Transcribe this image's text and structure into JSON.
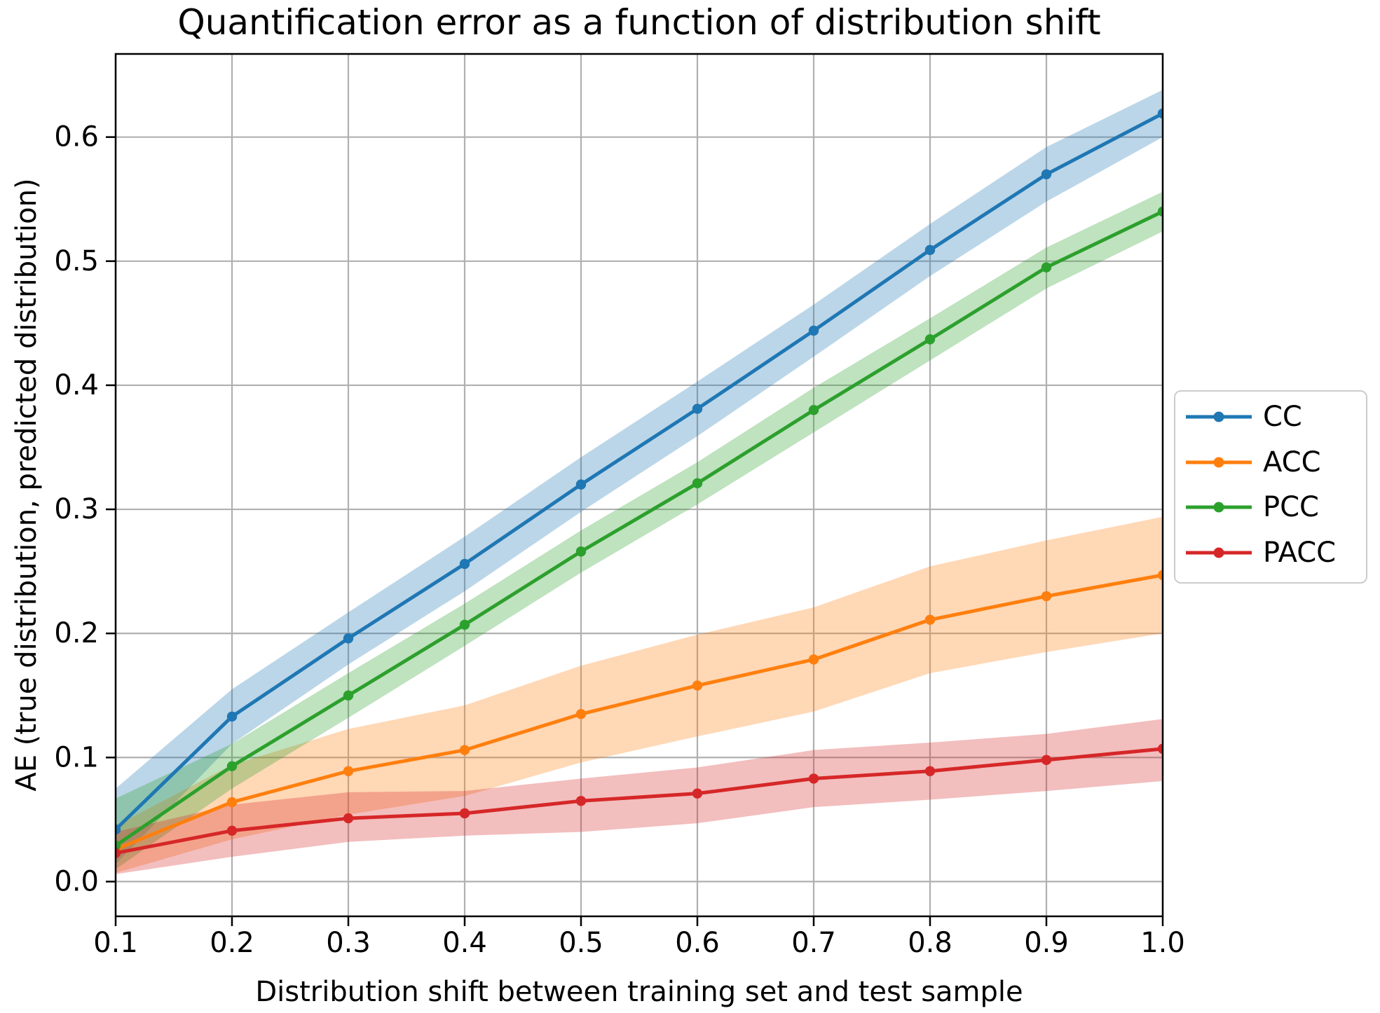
{
  "figure": {
    "background": "#ffffff"
  },
  "chart_data": {
    "type": "line",
    "title": "Quantification error as a function of distribution shift",
    "xlabel": "Distribution shift between training set and test sample",
    "ylabel": "AE (true distribution, predicted distribution)",
    "xlim": [
      0.1,
      1.0
    ],
    "ylim": [
      -0.028,
      0.667
    ],
    "grid": true,
    "grid_color": "#b0b0b0",
    "axis_color": "#000000",
    "legend_position": "right-outside",
    "legend_border_color": "#cccccc",
    "xticks": [
      "0.1",
      "0.2",
      "0.3",
      "0.4",
      "0.5",
      "0.6",
      "0.7",
      "0.8",
      "0.9",
      "1.0"
    ],
    "yticks": [
      "0.0",
      "0.1",
      "0.2",
      "0.3",
      "0.4",
      "0.5",
      "0.6"
    ],
    "x": [
      0.1,
      0.2,
      0.3,
      0.4,
      0.5,
      0.6,
      0.7,
      0.8,
      0.9,
      1.0
    ],
    "series": [
      {
        "name": "CC",
        "color": "#1f77b4",
        "band_alpha": 0.3,
        "values": [
          0.042,
          0.133,
          0.196,
          0.256,
          0.32,
          0.381,
          0.444,
          0.509,
          0.57,
          0.619
        ],
        "band_lower": [
          0.014,
          0.111,
          0.175,
          0.234,
          0.298,
          0.359,
          0.423,
          0.488,
          0.548,
          0.6
        ],
        "band_upper": [
          0.075,
          0.155,
          0.217,
          0.278,
          0.342,
          0.403,
          0.465,
          0.53,
          0.592,
          0.638
        ]
      },
      {
        "name": "ACC",
        "color": "#ff7f0e",
        "band_alpha": 0.3,
        "values": [
          0.026,
          0.064,
          0.089,
          0.106,
          0.135,
          0.158,
          0.179,
          0.211,
          0.23,
          0.247
        ],
        "band_lower": [
          0.007,
          0.034,
          0.054,
          0.069,
          0.096,
          0.117,
          0.137,
          0.168,
          0.185,
          0.2
        ],
        "band_upper": [
          0.045,
          0.094,
          0.123,
          0.142,
          0.174,
          0.199,
          0.221,
          0.254,
          0.275,
          0.294
        ]
      },
      {
        "name": "PCC",
        "color": "#2ca02c",
        "band_alpha": 0.3,
        "values": [
          0.029,
          0.093,
          0.15,
          0.207,
          0.266,
          0.321,
          0.38,
          0.437,
          0.495,
          0.54
        ],
        "band_lower": [
          0.01,
          0.075,
          0.132,
          0.19,
          0.249,
          0.304,
          0.362,
          0.42,
          0.478,
          0.524
        ],
        "band_upper": [
          0.067,
          0.111,
          0.168,
          0.224,
          0.283,
          0.338,
          0.398,
          0.454,
          0.511,
          0.556
        ]
      },
      {
        "name": "PACC",
        "color": "#d62728",
        "band_alpha": 0.3,
        "values": [
          0.023,
          0.041,
          0.051,
          0.055,
          0.065,
          0.071,
          0.083,
          0.089,
          0.098,
          0.107
        ],
        "band_lower": [
          0.006,
          0.02,
          0.032,
          0.037,
          0.04,
          0.047,
          0.06,
          0.066,
          0.073,
          0.081
        ],
        "band_upper": [
          0.04,
          0.062,
          0.072,
          0.073,
          0.083,
          0.092,
          0.106,
          0.112,
          0.119,
          0.131
        ]
      }
    ]
  }
}
